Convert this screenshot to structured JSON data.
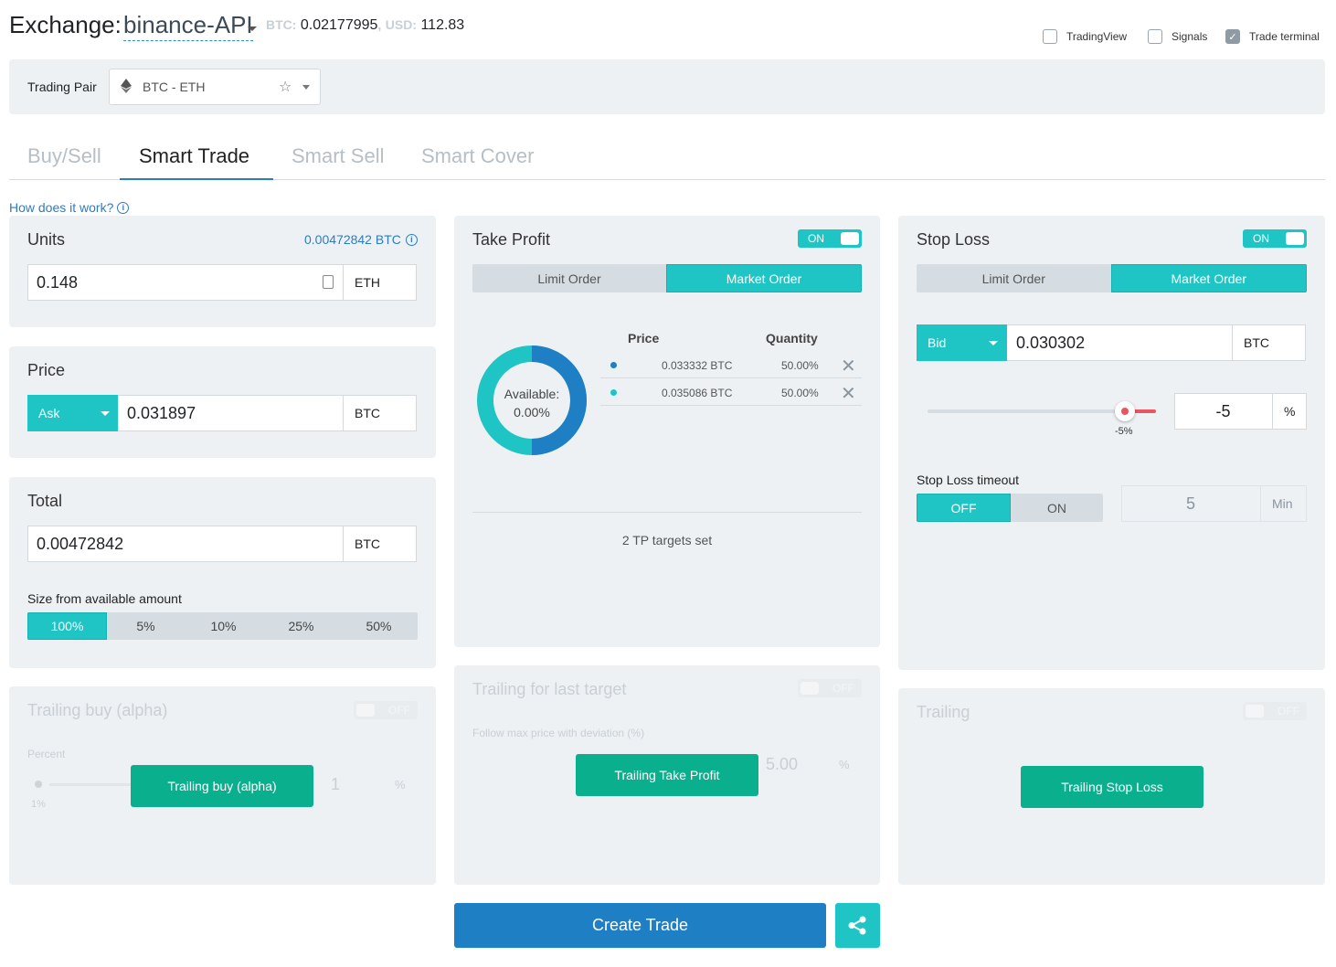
{
  "header": {
    "title": "Exchange:",
    "exchange": "binance-API",
    "btc_label": "BTC:",
    "btc_value": "0.02177995",
    "sep": ",",
    "usd_label": "USD:",
    "usd_value": "112.83",
    "checkboxes": [
      {
        "label": "TradingView",
        "checked": false
      },
      {
        "label": "Signals",
        "checked": false
      },
      {
        "label": "Trade terminal",
        "checked": true
      }
    ]
  },
  "pair": {
    "label": "Trading Pair",
    "value": "BTC - ETH"
  },
  "tabs": [
    "Buy/Sell",
    "Smart Trade",
    "Smart Sell",
    "Smart Cover"
  ],
  "active_tab": "Smart Trade",
  "how_link": "How does it work?",
  "units": {
    "title": "Units",
    "equiv": "0.00472842 BTC",
    "value": "0.148",
    "unit": "ETH"
  },
  "price": {
    "title": "Price",
    "side": "Ask",
    "value": "0.031897",
    "unit": "BTC"
  },
  "total": {
    "title": "Total",
    "value": "0.00472842",
    "unit": "BTC",
    "size_label": "Size from available amount",
    "size_options": [
      "100%",
      "5%",
      "10%",
      "25%",
      "50%"
    ],
    "size_selected": "100%"
  },
  "take_profit": {
    "title": "Take Profit",
    "toggle": "ON",
    "order_types": [
      "Limit Order",
      "Market Order"
    ],
    "selected": "Market Order",
    "available_label": "Available:",
    "available_value": "0.00%",
    "col_price": "Price",
    "col_qty": "Quantity",
    "targets": [
      {
        "price": "0.033332 BTC",
        "qty": "50.00%",
        "color": "#1f7fc4"
      },
      {
        "price": "0.035086 BTC",
        "qty": "50.00%",
        "color": "#1fc5c5"
      }
    ],
    "summary": "2 TP targets set"
  },
  "stop_loss": {
    "title": "Stop Loss",
    "toggle": "ON",
    "order_types": [
      "Limit Order",
      "Market Order"
    ],
    "selected": "Market Order",
    "side": "Bid",
    "value": "0.030302",
    "unit": "BTC",
    "slider_label": "-5%",
    "slider_level_percent": -5,
    "percent_value": "-5",
    "percent_unit": "%",
    "timeout_label": "Stop Loss timeout",
    "timeout_options": [
      "OFF",
      "ON"
    ],
    "timeout_selected": "OFF",
    "timeout_value": "5",
    "timeout_unit": "Min"
  },
  "trailing_buy": {
    "title": "Trailing buy (alpha)",
    "toggle": "OFF",
    "percent_label": "Percent",
    "value": "1",
    "unit": "%",
    "slider_label": "1%",
    "button": "Trailing buy (alpha)"
  },
  "trailing_tp": {
    "title": "Trailing for last target",
    "toggle": "OFF",
    "desc": "Follow max price with deviation (%)",
    "value": "5.00",
    "unit": "%",
    "button": "Trailing Take Profit"
  },
  "trailing_sl": {
    "title": "Trailing",
    "toggle": "OFF",
    "button": "Trailing Stop Loss"
  },
  "create_button": "Create Trade",
  "colors": {
    "teal": "#1fc5c5",
    "blue": "#1f7fc4",
    "green": "#0ab08e",
    "red": "#e85560"
  }
}
